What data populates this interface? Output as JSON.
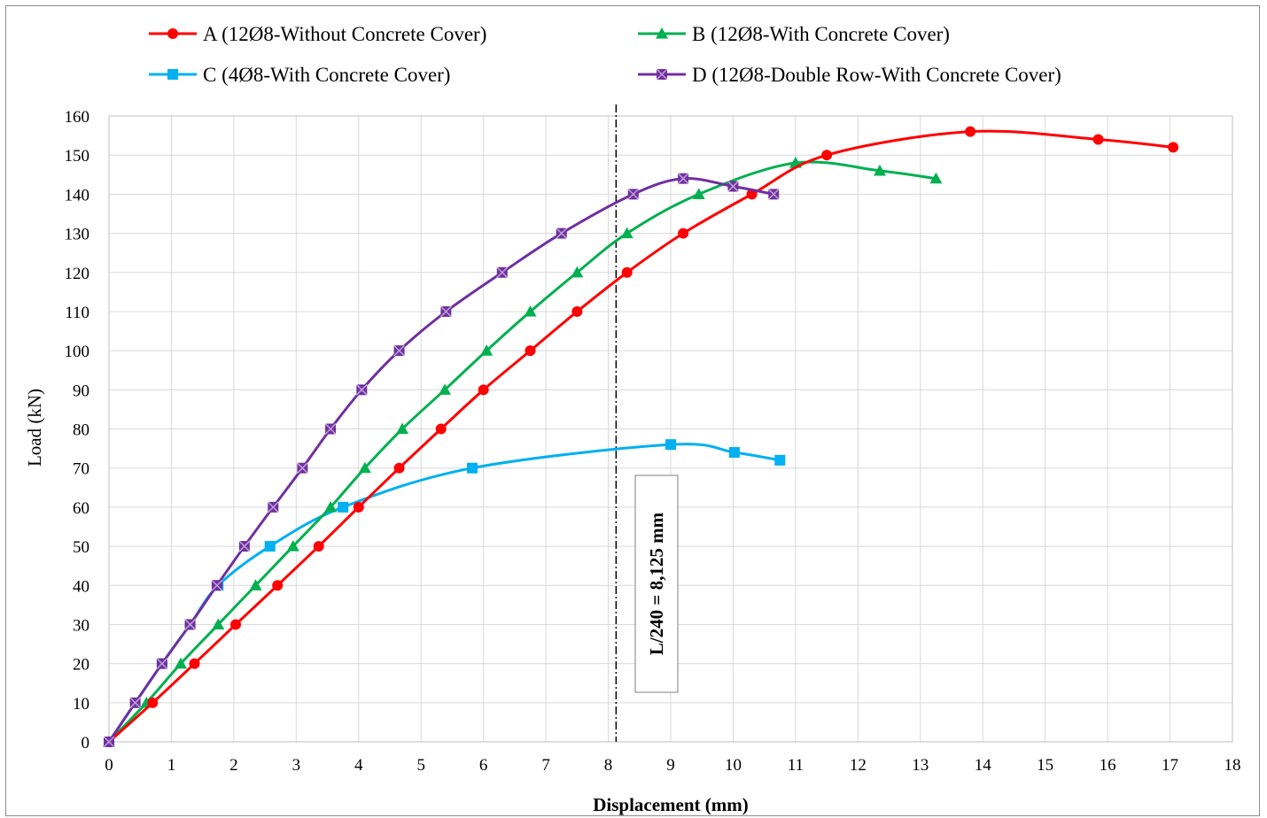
{
  "chart_data": {
    "type": "line",
    "title": "",
    "xlabel": "Displacement (mm)",
    "ylabel": "Load (kN)",
    "xlim": [
      0,
      18
    ],
    "ylim": [
      0,
      160
    ],
    "xticks": [
      "0",
      "1",
      "2",
      "3",
      "4",
      "5",
      "6",
      "7",
      "8",
      "9",
      "10",
      "11",
      "12",
      "13",
      "14",
      "15",
      "16",
      "17",
      "18"
    ],
    "yticks": [
      "0",
      "10",
      "20",
      "30",
      "40",
      "50",
      "60",
      "70",
      "80",
      "90",
      "100",
      "110",
      "120",
      "130",
      "140",
      "150",
      "160"
    ],
    "grid": true,
    "legend_position": "top",
    "series": [
      {
        "name": "A (12Ø8-Without Concrete Cover)",
        "color": "#ff0000",
        "marker": "circle",
        "points": [
          [
            0,
            0
          ],
          [
            0.7,
            10
          ],
          [
            1.37,
            20
          ],
          [
            2.03,
            30
          ],
          [
            2.7,
            40
          ],
          [
            3.36,
            50
          ],
          [
            4.0,
            60
          ],
          [
            4.65,
            70
          ],
          [
            5.32,
            80
          ],
          [
            6.0,
            90
          ],
          [
            6.75,
            100
          ],
          [
            7.5,
            110
          ],
          [
            8.3,
            120
          ],
          [
            9.2,
            130
          ],
          [
            10.3,
            140
          ],
          [
            11.5,
            150
          ],
          [
            13.8,
            156
          ],
          [
            15.85,
            154
          ],
          [
            17.05,
            152
          ]
        ]
      },
      {
        "name": "B (12Ø8-With Concrete Cover)",
        "color": "#00b050",
        "marker": "triangle",
        "points": [
          [
            0,
            0
          ],
          [
            0.6,
            10
          ],
          [
            1.15,
            20
          ],
          [
            1.75,
            30
          ],
          [
            2.35,
            40
          ],
          [
            2.95,
            50
          ],
          [
            3.55,
            60
          ],
          [
            4.1,
            70
          ],
          [
            4.7,
            80
          ],
          [
            5.38,
            90
          ],
          [
            6.05,
            100
          ],
          [
            6.75,
            110
          ],
          [
            7.5,
            120
          ],
          [
            8.3,
            130
          ],
          [
            9.45,
            140
          ],
          [
            11.0,
            148
          ],
          [
            12.35,
            146
          ],
          [
            13.25,
            144
          ]
        ]
      },
      {
        "name": "C (4Ø8-With Concrete Cover)",
        "color": "#00b0f0",
        "marker": "square",
        "points": [
          [
            0,
            0
          ],
          [
            0.85,
            20
          ],
          [
            1.3,
            30
          ],
          [
            1.75,
            40
          ],
          [
            2.58,
            50
          ],
          [
            3.75,
            60
          ],
          [
            5.82,
            70
          ],
          [
            9.0,
            76
          ],
          [
            10.02,
            74
          ],
          [
            10.75,
            72
          ]
        ]
      },
      {
        "name": "D (12Ø8-Double Row-With Concrete Cover)",
        "color": "#7030a0",
        "marker": "square-x",
        "points": [
          [
            0,
            0
          ],
          [
            0.42,
            10
          ],
          [
            0.85,
            20
          ],
          [
            1.3,
            30
          ],
          [
            1.73,
            40
          ],
          [
            2.17,
            50
          ],
          [
            2.63,
            60
          ],
          [
            3.1,
            70
          ],
          [
            3.55,
            80
          ],
          [
            4.05,
            90
          ],
          [
            4.65,
            100
          ],
          [
            5.4,
            110
          ],
          [
            6.3,
            120
          ],
          [
            7.25,
            130
          ],
          [
            8.4,
            140
          ],
          [
            9.2,
            144
          ],
          [
            10.0,
            142
          ],
          [
            10.65,
            140
          ]
        ]
      }
    ],
    "annotations": [
      {
        "type": "vertical-line",
        "x": 8.125,
        "style": "dash-dot",
        "color": "#000000"
      },
      {
        "type": "text-box",
        "text": "L/240 = 8,125 mm",
        "orientation": "vertical"
      }
    ]
  }
}
